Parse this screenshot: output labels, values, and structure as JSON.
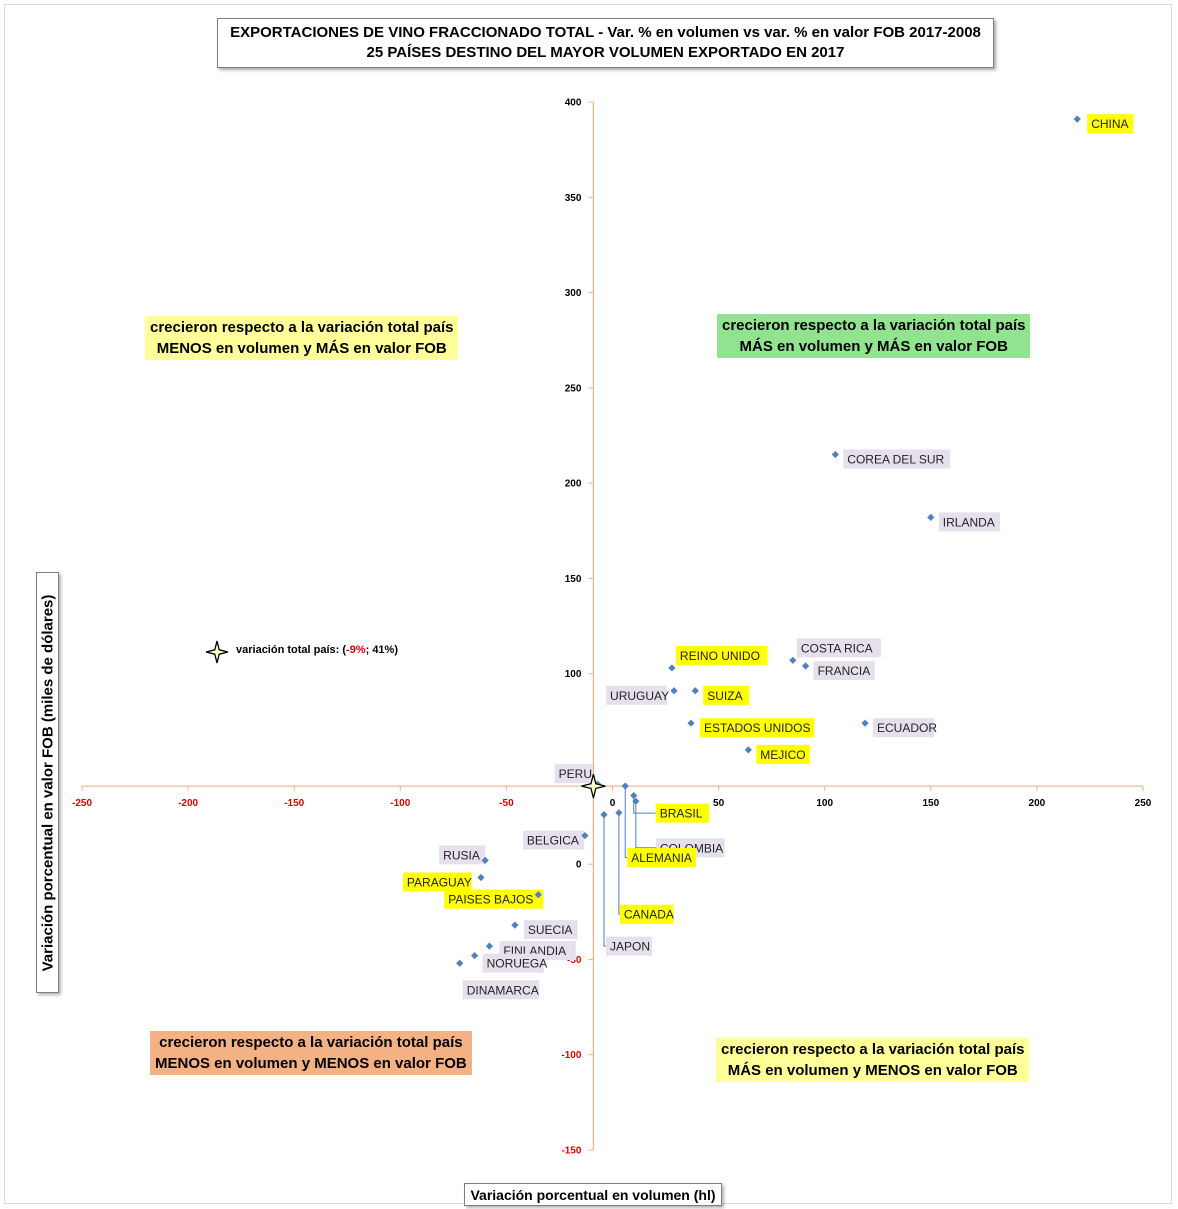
{
  "title": {
    "line1": "EXPORTACIONES DE VINO FRACCIONADO TOTAL - Var. % en volumen vs var. % en valor FOB 2017-2008",
    "line2": "25 PAÍSES DESTINO DEL MAYOR VOLUMEN EXPORTADO EN 2017"
  },
  "quadrants": {
    "top_left": {
      "line1": "crecieron respecto a la variación total país",
      "line2": "MENOS en volumen y MÁS en valor FOB"
    },
    "top_right": {
      "line1": "crecieron respecto a la variación total país",
      "line2": "MÁS en volumen y MÁS en valor FOB"
    },
    "bottom_left": {
      "line1": "crecieron respecto a la variación total país",
      "line2": "MENOS en volumen y MENOS en valor FOB"
    },
    "bottom_right": {
      "line1": "crecieron respecto a la variación total país",
      "line2": "MÁS en volumen y MENOS en valor FOB"
    }
  },
  "total_note": {
    "prefix": "variación total país: (",
    "x": "-9%",
    "rest": "; 41%)"
  },
  "chart_data": {
    "type": "scatter",
    "xlabel": "Variación porcentual en volumen (hl)",
    "ylabel": "Variación porcentual en valor FOB (miles de dólares)",
    "xlim": [
      -250,
      250
    ],
    "ylim": [
      -150,
      400
    ],
    "x_ticks": [
      -250,
      -200,
      -150,
      -100,
      -50,
      0,
      50,
      100,
      150,
      200,
      250
    ],
    "y_ticks": [
      -150,
      -100,
      -50,
      0,
      50,
      100,
      150,
      200,
      250,
      300,
      350,
      400
    ],
    "reference_point": {
      "x": -9,
      "y": 41
    },
    "colors": {
      "marker": "#4f81bd",
      "highlight": "#ffff00",
      "label_bg": "#e6e0ec",
      "neg_tick": "#e00000",
      "ref_axis": "#f4b183"
    },
    "points": [
      {
        "name": "CHINA",
        "x": 219,
        "y": 391,
        "highlight": true
      },
      {
        "name": "COREA DEL SUR",
        "x": 105,
        "y": 215,
        "highlight": false
      },
      {
        "name": "IRLANDA",
        "x": 150,
        "y": 182,
        "highlight": false
      },
      {
        "name": "COSTA RICA",
        "x": 85,
        "y": 107,
        "highlight": false
      },
      {
        "name": "FRANCIA",
        "x": 91,
        "y": 104,
        "highlight": false
      },
      {
        "name": "REINO UNIDO",
        "x": 28,
        "y": 103,
        "highlight": true
      },
      {
        "name": "URUGUAY",
        "x": 29,
        "y": 91,
        "highlight": false
      },
      {
        "name": "SUIZA",
        "x": 39,
        "y": 91,
        "highlight": true
      },
      {
        "name": "ESTADOS UNIDOS",
        "x": 37,
        "y": 74,
        "highlight": true
      },
      {
        "name": "ECUADOR",
        "x": 119,
        "y": 74,
        "highlight": false
      },
      {
        "name": "MEJICO",
        "x": 64,
        "y": 60,
        "highlight": true
      },
      {
        "name": "PERU",
        "x": -7,
        "y": 42,
        "highlight": false
      },
      {
        "name": "BRASIL",
        "x": 10,
        "y": 36,
        "highlight": true
      },
      {
        "name": "COLOMBIA",
        "x": 11,
        "y": 33,
        "highlight": false
      },
      {
        "name": "BELGICA",
        "x": -13,
        "y": 15,
        "highlight": false
      },
      {
        "name": "ALEMANIA",
        "x": 6,
        "y": 41,
        "highlight": true
      },
      {
        "name": "CANADA",
        "x": 3,
        "y": 27,
        "highlight": true
      },
      {
        "name": "JAPON",
        "x": -4,
        "y": 26,
        "highlight": false
      },
      {
        "name": "RUSIA",
        "x": -60,
        "y": 2,
        "highlight": false
      },
      {
        "name": "PARAGUAY",
        "x": -62,
        "y": -7,
        "highlight": true
      },
      {
        "name": "PAISES BAJOS",
        "x": -35,
        "y": -16,
        "highlight": true
      },
      {
        "name": "SUECIA",
        "x": -46,
        "y": -32,
        "highlight": false
      },
      {
        "name": "FINLANDIA",
        "x": -58,
        "y": -43,
        "highlight": false
      },
      {
        "name": "NORUEGA",
        "x": -65,
        "y": -48,
        "highlight": false
      },
      {
        "name": "DINAMARCA",
        "x": -72,
        "y": -52,
        "highlight": false
      }
    ]
  }
}
